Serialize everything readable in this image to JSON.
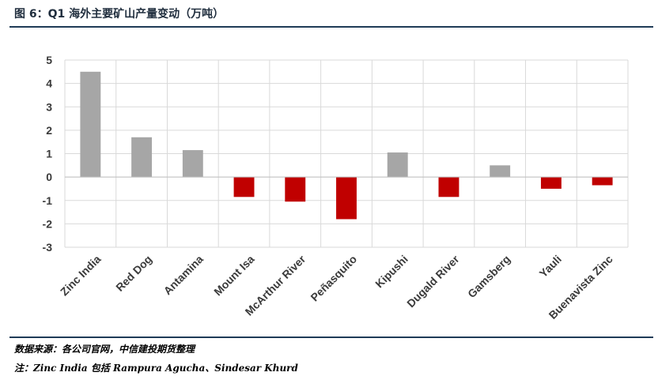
{
  "figure": {
    "title": "图 6：Q1 海外主要矿山产量变动（万吨）",
    "source": "数据来源：各公司官网，中信建投期货整理",
    "note": "注：Zinc India 包括 Rampura Agucha、Sindesar Khurd"
  },
  "colors": {
    "positive": "#a6a6a6",
    "negative": "#c00000",
    "grid": "#d9d9d9",
    "rule": "#1f3b57"
  },
  "chart_data": {
    "type": "bar",
    "title": "",
    "xlabel": "",
    "ylabel": "",
    "categories": [
      "Zinc India",
      "Red Dog",
      "Antamina",
      "Mount Isa",
      "McArthur River",
      "Peñasquito",
      "Kipushi",
      "Dugald River",
      "Gamsberg",
      "Yauli",
      "Buenavista Zinc"
    ],
    "values": [
      4.5,
      1.7,
      1.15,
      -0.85,
      -1.05,
      -1.8,
      1.05,
      -0.85,
      0.5,
      -0.5,
      -0.35
    ],
    "ylim": [
      -3,
      5
    ],
    "yticks": [
      5,
      4,
      3,
      2,
      1,
      0,
      -1,
      -2,
      -3
    ],
    "grid": true,
    "legend": "none"
  }
}
